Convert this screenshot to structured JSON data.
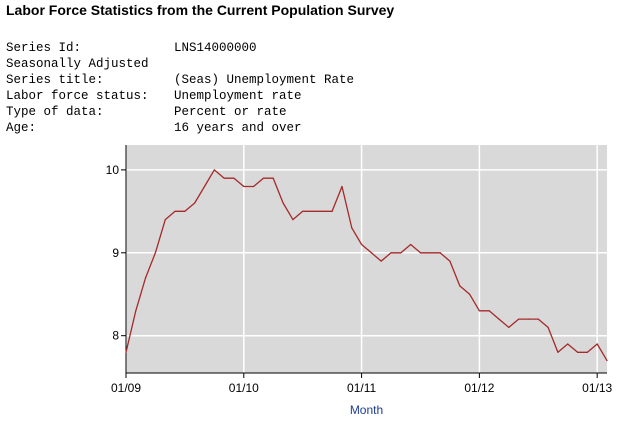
{
  "title": "Labor Force Statistics from the Current Population Survey",
  "meta": [
    {
      "label": "Series Id:",
      "value": "LNS14000000"
    },
    {
      "label": "Seasonally Adjusted",
      "value": ""
    },
    {
      "label": "Series title:",
      "value": "(Seas) Unemployment Rate"
    },
    {
      "label": "Labor force status:",
      "value": "Unemployment rate"
    },
    {
      "label": "Type of data:",
      "value": "Percent or rate"
    },
    {
      "label": "Age:",
      "value": "16 years and over"
    }
  ],
  "colors": {
    "plot_background": "#d9d9d9",
    "grid": "#ffffff",
    "line": "#a52a2a",
    "axis_title": "#1f3f8f"
  },
  "chart_data": {
    "type": "line",
    "title": "",
    "xlabel": "Month",
    "ylabel": "",
    "x_tick_labels": [
      "01/09",
      "01/10",
      "01/11",
      "01/12",
      "01/13"
    ],
    "y_ticks": [
      8,
      9,
      10
    ],
    "ylim": [
      7.55,
      10.3
    ],
    "grid": true,
    "series": [
      {
        "values": [
          {
            "x": "2009-01",
            "y": 7.8
          },
          {
            "x": "2009-02",
            "y": 8.3
          },
          {
            "x": "2009-03",
            "y": 8.7
          },
          {
            "x": "2009-04",
            "y": 9.0
          },
          {
            "x": "2009-05",
            "y": 9.4
          },
          {
            "x": "2009-06",
            "y": 9.5
          },
          {
            "x": "2009-07",
            "y": 9.5
          },
          {
            "x": "2009-08",
            "y": 9.6
          },
          {
            "x": "2009-09",
            "y": 9.8
          },
          {
            "x": "2009-10",
            "y": 10.0
          },
          {
            "x": "2009-11",
            "y": 9.9
          },
          {
            "x": "2009-12",
            "y": 9.9
          },
          {
            "x": "2010-01",
            "y": 9.8
          },
          {
            "x": "2010-02",
            "y": 9.8
          },
          {
            "x": "2010-03",
            "y": 9.9
          },
          {
            "x": "2010-04",
            "y": 9.9
          },
          {
            "x": "2010-05",
            "y": 9.6
          },
          {
            "x": "2010-06",
            "y": 9.4
          },
          {
            "x": "2010-07",
            "y": 9.5
          },
          {
            "x": "2010-08",
            "y": 9.5
          },
          {
            "x": "2010-09",
            "y": 9.5
          },
          {
            "x": "2010-10",
            "y": 9.5
          },
          {
            "x": "2010-11",
            "y": 9.8
          },
          {
            "x": "2010-12",
            "y": 9.3
          },
          {
            "x": "2011-01",
            "y": 9.1
          },
          {
            "x": "2011-02",
            "y": 9.0
          },
          {
            "x": "2011-03",
            "y": 8.9
          },
          {
            "x": "2011-04",
            "y": 9.0
          },
          {
            "x": "2011-05",
            "y": 9.0
          },
          {
            "x": "2011-06",
            "y": 9.1
          },
          {
            "x": "2011-07",
            "y": 9.0
          },
          {
            "x": "2011-08",
            "y": 9.0
          },
          {
            "x": "2011-09",
            "y": 9.0
          },
          {
            "x": "2011-10",
            "y": 8.9
          },
          {
            "x": "2011-11",
            "y": 8.6
          },
          {
            "x": "2011-12",
            "y": 8.5
          },
          {
            "x": "2012-01",
            "y": 8.3
          },
          {
            "x": "2012-02",
            "y": 8.3
          },
          {
            "x": "2012-03",
            "y": 8.2
          },
          {
            "x": "2012-04",
            "y": 8.1
          },
          {
            "x": "2012-05",
            "y": 8.2
          },
          {
            "x": "2012-06",
            "y": 8.2
          },
          {
            "x": "2012-07",
            "y": 8.2
          },
          {
            "x": "2012-08",
            "y": 8.1
          },
          {
            "x": "2012-09",
            "y": 7.8
          },
          {
            "x": "2012-10",
            "y": 7.9
          },
          {
            "x": "2012-11",
            "y": 7.8
          },
          {
            "x": "2012-12",
            "y": 7.8
          },
          {
            "x": "2013-01",
            "y": 7.9
          },
          {
            "x": "2013-02",
            "y": 7.7
          }
        ]
      }
    ]
  }
}
